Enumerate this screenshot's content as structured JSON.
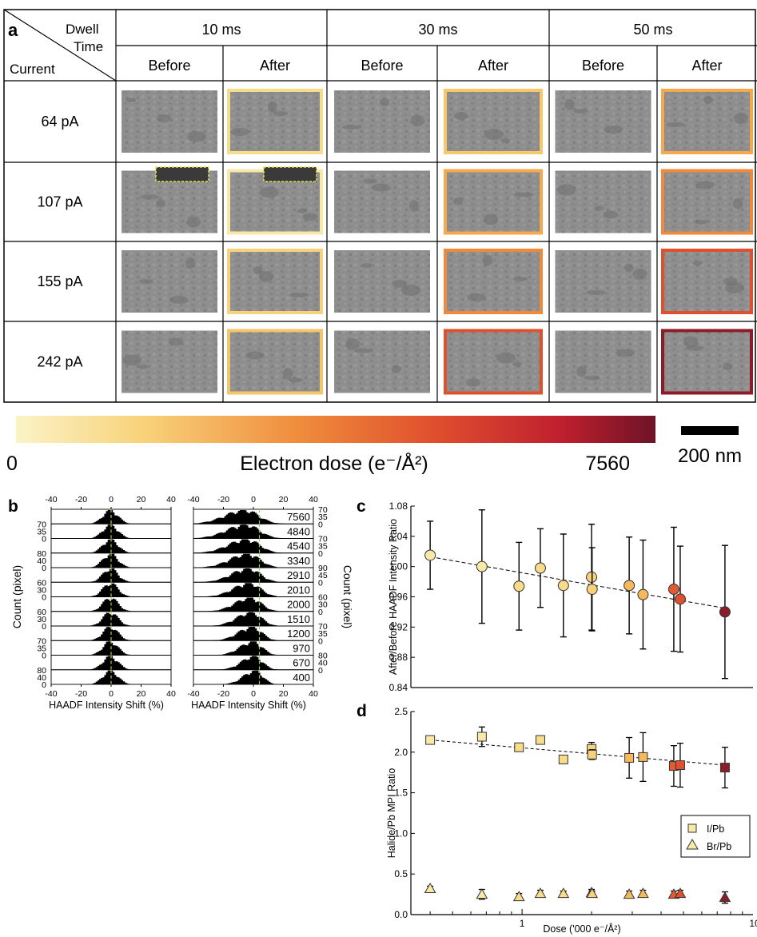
{
  "panel_a": {
    "label": "a",
    "corner": {
      "top": "Dwell",
      "mid": "Time",
      "left": "Current"
    },
    "dwell_times": [
      "10 ms",
      "30 ms",
      "50 ms"
    ],
    "before_label": "Before",
    "after_label": "After",
    "currents": [
      "64 pA",
      "107 pA",
      "155 pA",
      "242 pA"
    ],
    "after_border_colors": [
      [
        "#f7dc8c",
        "#f8c768",
        "#f5a94c"
      ],
      [
        "#f8e9a8",
        "#f5a94c",
        "#ef8a3a"
      ],
      [
        "#f8d27a",
        "#ef8a3a",
        "#e0502e"
      ],
      [
        "#f4c56a",
        "#e0502e",
        "#8c1c2a"
      ]
    ]
  },
  "colorbar": {
    "min_label": "0",
    "title": "Electron dose (e⁻/Å²)",
    "max_label": "7560",
    "colors": [
      "#fbf3c6",
      "#f8d27a",
      "#ef8a3a",
      "#e0502e",
      "#c0202e",
      "#6e1326"
    ]
  },
  "scalebar": {
    "label": "200 nm"
  },
  "panel_b": {
    "label": "b",
    "x_ticks": [
      "-40",
      "-20",
      "0",
      "20",
      "40"
    ],
    "x_label": "HAADF Intensity Shift (%)",
    "y_label_left": "Count (pixel)",
    "y_label_right": "Count (pixel)",
    "doses": [
      "7560",
      "4840",
      "4540",
      "3340",
      "2910",
      "2010",
      "2000",
      "1510",
      "1200",
      "970",
      "670",
      "400"
    ],
    "left_y_ticks": [
      [
        "70",
        "35",
        "0"
      ],
      [
        "80",
        "40",
        "0"
      ],
      [
        "60",
        "30",
        "0"
      ],
      [
        "60",
        "30",
        "0"
      ],
      [
        "70",
        "35",
        "0"
      ],
      [
        "80",
        "40",
        "0"
      ]
    ],
    "right_y_ticks": [
      [
        "70",
        "35",
        "0"
      ],
      [
        "70",
        "35",
        "0"
      ],
      [
        "90",
        "45",
        "0"
      ],
      [
        "60",
        "30",
        "0"
      ],
      [
        "70",
        "35",
        "0"
      ],
      [
        "80",
        "40",
        "0"
      ]
    ]
  },
  "chart_data": [
    {
      "type": "scatter",
      "panel": "c",
      "ylabel": "After/Before HAADF Intensity Ratio",
      "ylim": [
        0.84,
        1.08
      ],
      "xlim": [
        0.33,
        10
      ],
      "x_scale": "log",
      "y_ticks": [
        "1.08",
        "1.04",
        "1.00",
        "0.96",
        "0.92",
        "0.88",
        "0.84"
      ],
      "series": [
        {
          "values": [
            {
              "x": 0.4,
              "y": 1.015,
              "err": 0.045,
              "color": "#f8e9a8"
            },
            {
              "x": 0.67,
              "y": 1.0,
              "err": 0.075,
              "color": "#f8e9a8"
            },
            {
              "x": 0.97,
              "y": 0.974,
              "err": 0.058,
              "color": "#f8dc8c"
            },
            {
              "x": 1.2,
              "y": 0.998,
              "err": 0.052,
              "color": "#f8dc8c"
            },
            {
              "x": 1.51,
              "y": 0.975,
              "err": 0.068,
              "color": "#f8dc8c"
            },
            {
              "x": 2.0,
              "y": 0.986,
              "err": 0.07,
              "color": "#f8d27a"
            },
            {
              "x": 2.01,
              "y": 0.97,
              "err": 0.055,
              "color": "#f8d27a"
            },
            {
              "x": 2.91,
              "y": 0.975,
              "err": 0.064,
              "color": "#f5b85a"
            },
            {
              "x": 3.34,
              "y": 0.963,
              "err": 0.072,
              "color": "#f5b85a"
            },
            {
              "x": 4.54,
              "y": 0.97,
              "err": 0.082,
              "color": "#e05a32"
            },
            {
              "x": 4.84,
              "y": 0.957,
              "err": 0.07,
              "color": "#e0502e"
            },
            {
              "x": 7.56,
              "y": 0.94,
              "err": 0.088,
              "color": "#8c1c2a"
            }
          ]
        }
      ],
      "trend": {
        "x": [
          0.4,
          7.56
        ],
        "y": [
          1.013,
          0.945
        ]
      }
    },
    {
      "type": "scatter",
      "panel": "d",
      "ylabel": "Halide/Pb MPI Ratio",
      "xlabel": "Dose ('000 e⁻/Å²)",
      "ylim": [
        0.0,
        2.5
      ],
      "xlim": [
        0.33,
        10
      ],
      "x_scale": "log",
      "x_ticks": [
        "1",
        "10"
      ],
      "y_ticks": [
        "2.5",
        "2.0",
        "1.5",
        "1.0",
        "0.5",
        "0.0"
      ],
      "series": [
        {
          "name": "I/Pb",
          "marker": "square",
          "values": [
            {
              "x": 0.4,
              "y": 2.15,
              "err": 0.03
            },
            {
              "x": 0.67,
              "y": 2.19,
              "err": 0.12
            },
            {
              "x": 0.97,
              "y": 2.06,
              "err": 0.04
            },
            {
              "x": 1.2,
              "y": 2.15,
              "err": 0.05
            },
            {
              "x": 1.51,
              "y": 1.91,
              "err": 0.04
            },
            {
              "x": 2.0,
              "y": 2.04,
              "err": 0.08
            },
            {
              "x": 2.01,
              "y": 1.97,
              "err": 0.06
            },
            {
              "x": 2.91,
              "y": 1.93,
              "err": 0.25
            },
            {
              "x": 3.34,
              "y": 1.94,
              "err": 0.3
            },
            {
              "x": 4.54,
              "y": 1.83,
              "err": 0.25
            },
            {
              "x": 4.84,
              "y": 1.84,
              "err": 0.27
            },
            {
              "x": 7.56,
              "y": 1.81,
              "err": 0.25
            }
          ]
        },
        {
          "name": "Br/Pb",
          "marker": "triangle",
          "values": [
            {
              "x": 0.4,
              "y": 0.32,
              "err": 0.03
            },
            {
              "x": 0.67,
              "y": 0.25,
              "err": 0.06
            },
            {
              "x": 0.97,
              "y": 0.22,
              "err": 0.04
            },
            {
              "x": 1.2,
              "y": 0.26,
              "err": 0.04
            },
            {
              "x": 1.51,
              "y": 0.26,
              "err": 0.03
            },
            {
              "x": 2.0,
              "y": 0.27,
              "err": 0.04
            },
            {
              "x": 2.01,
              "y": 0.26,
              "err": 0.03
            },
            {
              "x": 2.91,
              "y": 0.25,
              "err": 0.04
            },
            {
              "x": 3.34,
              "y": 0.26,
              "err": 0.04
            },
            {
              "x": 4.54,
              "y": 0.25,
              "err": 0.04
            },
            {
              "x": 4.84,
              "y": 0.26,
              "err": 0.04
            },
            {
              "x": 7.56,
              "y": 0.21,
              "err": 0.07
            }
          ]
        }
      ],
      "point_colors": [
        "#f8e9a8",
        "#f8e9a8",
        "#f8dc8c",
        "#f8dc8c",
        "#f8dc8c",
        "#f8d27a",
        "#f8d27a",
        "#f5b85a",
        "#f5b85a",
        "#e05a32",
        "#e0502e",
        "#8c1c2a"
      ],
      "trend": {
        "x": [
          0.4,
          7.56
        ],
        "y": [
          2.15,
          1.84
        ]
      },
      "legend": {
        "placement": "bottom-right",
        "entries": [
          "I/Pb",
          "Br/Pb"
        ]
      }
    }
  ]
}
